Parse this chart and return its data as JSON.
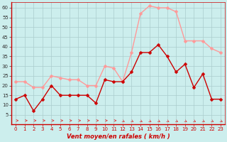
{
  "x": [
    0,
    1,
    2,
    3,
    4,
    5,
    6,
    7,
    8,
    9,
    10,
    11,
    12,
    13,
    14,
    15,
    16,
    17,
    18,
    19,
    20,
    21,
    22,
    23
  ],
  "vent_moyen": [
    13,
    15,
    7,
    13,
    20,
    15,
    15,
    15,
    15,
    11,
    23,
    22,
    22,
    27,
    37,
    37,
    41,
    35,
    27,
    31,
    19,
    26,
    13,
    13
  ],
  "en_rafales": [
    22,
    22,
    19,
    19,
    25,
    24,
    23,
    23,
    20,
    20,
    30,
    29,
    22,
    37,
    57,
    61,
    60,
    60,
    58,
    43,
    43,
    43,
    39,
    37
  ],
  "xlim": [
    -0.5,
    23.5
  ],
  "ylim": [
    0,
    63
  ],
  "yticks": [
    5,
    10,
    15,
    20,
    25,
    30,
    35,
    40,
    45,
    50,
    55,
    60
  ],
  "xticks": [
    0,
    1,
    2,
    3,
    4,
    5,
    6,
    7,
    8,
    9,
    10,
    11,
    12,
    13,
    14,
    15,
    16,
    17,
    18,
    19,
    20,
    21,
    22,
    23
  ],
  "xlabel": "Vent moyen/en rafales ( km/h )",
  "bg_color": "#cceeed",
  "grid_color": "#aacccc",
  "line_moyen_color": "#cc0000",
  "line_rafales_color": "#ff9999",
  "arrow_color": "#dd4444",
  "marker_size": 2.5,
  "line_width": 1.0
}
